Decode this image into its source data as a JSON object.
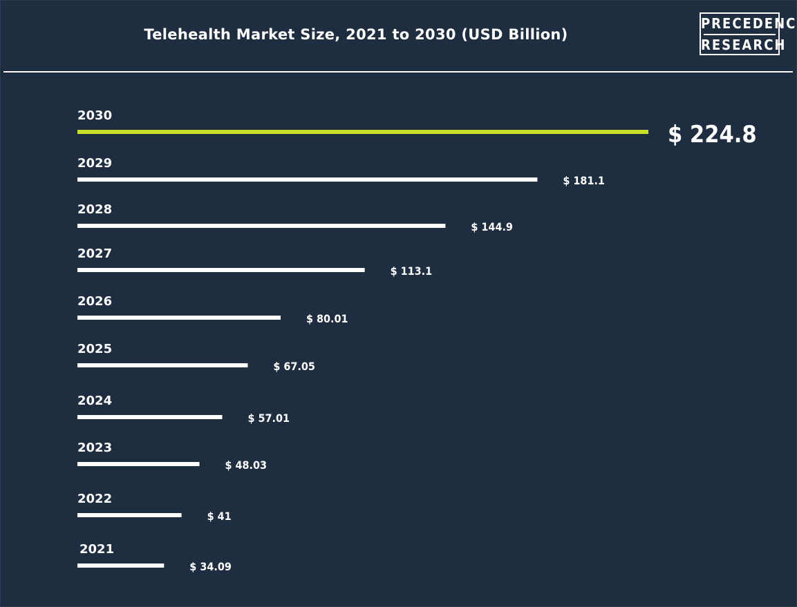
{
  "title": "Telehealth Market Size, 2021 to 2030 (USD Billion)",
  "logo": {
    "line1": "PRECEDENCE",
    "line2": "RESEARCH"
  },
  "colors": {
    "background": "#1e2d3f",
    "bar": "#ffffff",
    "highlight": "#c8e02a",
    "text": "#ffffff"
  },
  "chart_data": {
    "type": "bar",
    "orientation": "horizontal",
    "title": "Telehealth Market Size, 2021 to 2030 (USD Billion)",
    "categories": [
      "2030",
      "2029",
      "2028",
      "2027",
      "2026",
      "2025",
      "2024",
      "2023",
      "2022",
      "2021"
    ],
    "values": [
      224.8,
      181.1,
      144.9,
      113.1,
      80.01,
      67.05,
      57.01,
      48.03,
      41,
      34.09
    ],
    "value_labels": [
      "$ 224.8",
      "$ 181.1",
      "$ 144.9",
      "$ 113.1",
      "$ 80.01",
      "$ 67.05",
      "$ 57.01",
      "$ 48.03",
      "$ 41",
      "$ 34.09"
    ],
    "highlight_category": "2030",
    "grid": false,
    "legend": "none"
  }
}
